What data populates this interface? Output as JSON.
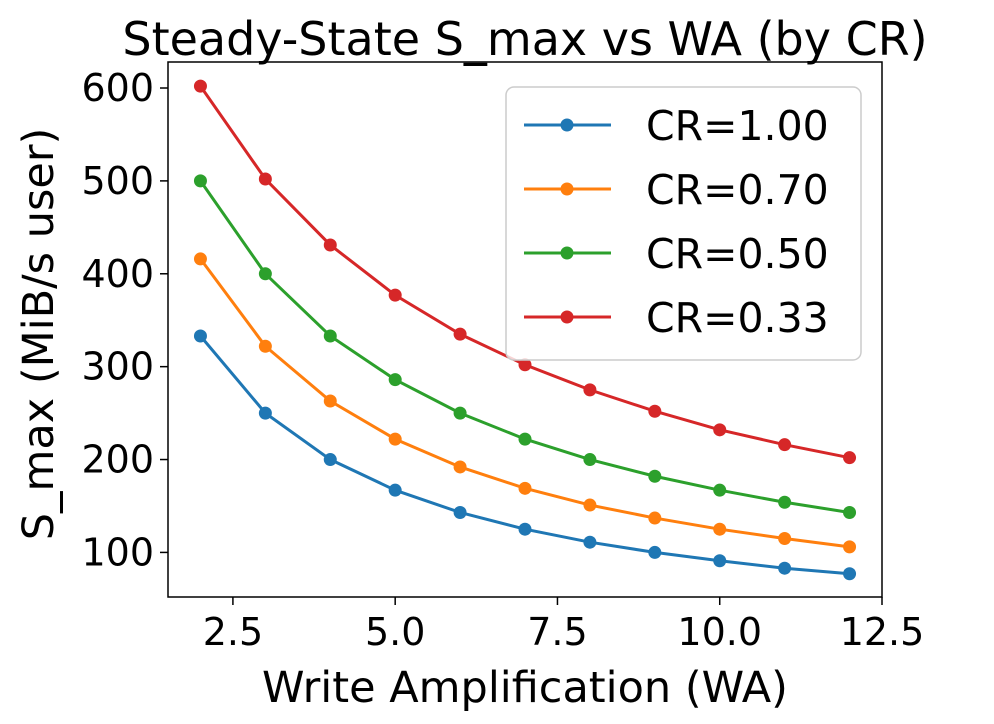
{
  "chart_data": {
    "type": "line",
    "title": "Steady-State S_max vs WA (by CR)",
    "xlabel": "Write Amplification (WA)",
    "ylabel": "S_max (MiB/s user)",
    "xlim": [
      1.5,
      12.5
    ],
    "ylim": [
      52,
      628
    ],
    "xticks": [
      2.5,
      5.0,
      7.5,
      10.0,
      12.5
    ],
    "xtick_labels": [
      "2.5",
      "5.0",
      "7.5",
      "10.0",
      "12.5"
    ],
    "yticks": [
      100,
      200,
      300,
      400,
      500,
      600
    ],
    "ytick_labels": [
      "100",
      "200",
      "300",
      "400",
      "500",
      "600"
    ],
    "x": [
      2,
      3,
      4,
      5,
      6,
      7,
      8,
      9,
      10,
      11,
      12
    ],
    "series": [
      {
        "name": "CR=1.00",
        "color": "#1f77b4",
        "values": [
          333,
          250,
          200,
          167,
          143,
          125,
          111,
          100,
          91,
          83,
          77
        ]
      },
      {
        "name": "CR=0.70",
        "color": "#ff7f0e",
        "values": [
          416,
          322,
          263,
          222,
          192,
          169,
          151,
          137,
          125,
          115,
          106
        ]
      },
      {
        "name": "CR=0.50",
        "color": "#2ca02c",
        "values": [
          500,
          400,
          333,
          286,
          250,
          222,
          200,
          182,
          167,
          154,
          143
        ]
      },
      {
        "name": "CR=0.33",
        "color": "#d62728",
        "values": [
          602,
          502,
          431,
          377,
          335,
          302,
          275,
          252,
          232,
          216,
          202
        ]
      }
    ],
    "grid": false,
    "legend_position": "top-right"
  }
}
